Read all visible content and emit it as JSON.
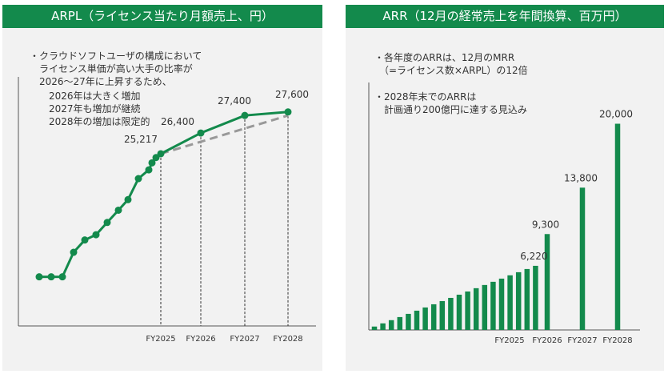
{
  "colors": {
    "accent": "#138a4c",
    "forecast": "#999999",
    "panel_bg": "#f2f2f2"
  },
  "chart_data": [
    {
      "type": "line",
      "title": "ARPL（ライセンス当たり月額売上、円）",
      "notes": [
        "・クラウドソフトユーザの構成において",
        "　ライセンス単価が高い大手の比率が",
        "　2026～27年に上昇するため、",
        "　　2026年は大きく増加",
        "　　2027年も増加が継続",
        "　　2028年の増加は限定的"
      ],
      "x_tick_labels": [
        "FY2025",
        "FY2026",
        "FY2027",
        "FY2028"
      ],
      "series": [
        {
          "name": "",
          "style": "solid",
          "values": [
            18200,
            18200,
            18200,
            19600,
            20300,
            20600,
            21300,
            22000,
            22600,
            23800,
            24300,
            24700,
            25000,
            25217,
            26400,
            27400,
            27600
          ]
        },
        {
          "name": "",
          "style": "dashed",
          "values": [
            25217,
            27400
          ]
        }
      ],
      "value_labels": [
        "25,217",
        "26,400",
        "27,400",
        "27,600"
      ],
      "ylim": [
        15400,
        29600
      ],
      "grid": false
    },
    {
      "type": "bar",
      "title": "ARR（12月の経常売上を年間換算、百万円）",
      "notes": [
        "・各年度のARRは、12月のMRR",
        "　（=ライセンス数×ARPL）の12倍",
        "",
        "・2028年末でのARRは",
        "　計画通り200億円に達する見込み"
      ],
      "x_tick_labels": [
        "FY2025",
        "FY2026",
        "FY2027",
        "FY2028"
      ],
      "series": [
        {
          "name": "",
          "values": [
            330,
            640,
            950,
            1250,
            1560,
            1870,
            2180,
            2490,
            2800,
            3110,
            3420,
            3730,
            4050,
            4360,
            4670,
            4980,
            5300,
            5600,
            5910,
            6220,
            9300,
            13800,
            20000
          ]
        }
      ],
      "value_labels": [
        "6,220",
        "9,300",
        "13,800",
        "20,000"
      ],
      "ylim": [
        0,
        24000
      ],
      "grid": false
    }
  ]
}
